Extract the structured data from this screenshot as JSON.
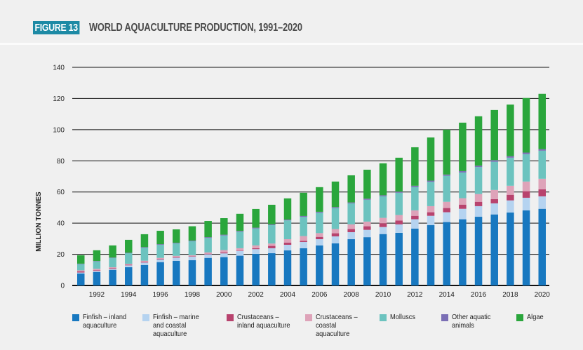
{
  "figure": {
    "badge": "FIGURE 13",
    "title": "WORLD AQUACULTURE PRODUCTION, 1991–2020"
  },
  "chart_data": {
    "type": "bar",
    "stacked": true,
    "title": "WORLD AQUACULTURE PRODUCTION, 1991–2020",
    "xlabel": "",
    "ylabel": "MILLION TONNES",
    "ylim": [
      0,
      140
    ],
    "yticks": [
      0,
      20,
      40,
      60,
      80,
      100,
      120,
      140
    ],
    "grid": true,
    "legend_position": "bottom",
    "categories": [
      1991,
      1992,
      1993,
      1994,
      1995,
      1996,
      1997,
      1998,
      1999,
      2000,
      2001,
      2002,
      2003,
      2004,
      2005,
      2006,
      2007,
      2008,
      2009,
      2010,
      2011,
      2012,
      2013,
      2014,
      2015,
      2016,
      2017,
      2018,
      2019,
      2020
    ],
    "xtick_labels": [
      "1992",
      "1994",
      "1996",
      "1998",
      "2000",
      "2002",
      "2004",
      "2006",
      "2008",
      "2010",
      "2012",
      "2014",
      "2016",
      "2018",
      "2020"
    ],
    "series": [
      {
        "name": "Finfish – inland aquaculture",
        "color": "#1878c0",
        "values": [
          7.7,
          8.6,
          10.0,
          11.7,
          13.1,
          15.0,
          15.8,
          16.2,
          17.7,
          18.2,
          19.1,
          20.3,
          20.7,
          22.5,
          23.9,
          25.7,
          27.0,
          29.7,
          31.0,
          33.0,
          33.8,
          36.5,
          38.7,
          40.7,
          42.5,
          44.1,
          45.6,
          46.8,
          48.2,
          49.2
        ]
      },
      {
        "name": "Finfish – marine and coastal aquaculture",
        "color": "#b5d3f0",
        "values": [
          0.6,
          0.7,
          0.6,
          1.2,
          1.6,
          1.7,
          2.0,
          2.3,
          2.3,
          2.4,
          3.0,
          3.0,
          3.2,
          3.6,
          4.0,
          4.0,
          4.5,
          4.5,
          4.7,
          4.5,
          5.4,
          6.0,
          6.0,
          6.3,
          6.7,
          6.8,
          7.1,
          7.8,
          8.1,
          8.0
        ]
      },
      {
        "name": "Crustaceans – inland aquaculture",
        "color": "#b8436e",
        "values": [
          0.7,
          0.5,
          0.5,
          0.4,
          0.4,
          0.4,
          0.4,
          0.3,
          0.4,
          0.6,
          0.3,
          0.6,
          1.5,
          1.4,
          0.8,
          1.5,
          2.0,
          2.0,
          2.3,
          2.4,
          2.5,
          2.2,
          2.3,
          2.7,
          2.7,
          2.8,
          2.7,
          3.6,
          4.2,
          4.5
        ]
      },
      {
        "name": "Crustaceans – coastal aquaculture",
        "color": "#dea3b9",
        "values": [
          0.7,
          0.9,
          0.6,
          0.6,
          0.8,
          0.6,
          0.8,
          0.6,
          0.8,
          1.5,
          1.5,
          1.8,
          1.5,
          2.2,
          3.0,
          2.4,
          2.7,
          3.0,
          3.0,
          3.5,
          3.5,
          3.5,
          3.9,
          4.0,
          4.1,
          5.0,
          5.9,
          5.8,
          6.2,
          6.8
        ]
      },
      {
        "name": "Molluscs",
        "color": "#6cc3bf",
        "values": [
          4.0,
          4.7,
          5.9,
          6.8,
          8.3,
          8.4,
          8.0,
          9.0,
          9.3,
          9.4,
          10.6,
          10.9,
          11.8,
          12.1,
          12.3,
          13.1,
          13.5,
          13.5,
          14.0,
          13.8,
          14.3,
          15.0,
          15.6,
          16.7,
          16.5,
          17.3,
          18.1,
          18.0,
          17.6,
          18.0
        ]
      },
      {
        "name": "Other aquatic animals",
        "color": "#7b6fb5",
        "values": [
          0.3,
          0.3,
          0.3,
          0.3,
          0.4,
          0.4,
          0.4,
          0.4,
          0.5,
          0.5,
          0.5,
          0.5,
          0.5,
          0.5,
          0.6,
          0.6,
          0.6,
          0.6,
          0.7,
          0.7,
          0.7,
          0.8,
          0.8,
          0.8,
          0.9,
          0.9,
          1.0,
          1.0,
          1.0,
          1.0
        ]
      },
      {
        "name": "Algae",
        "color": "#2aa63c",
        "values": [
          5.4,
          6.9,
          7.8,
          8.3,
          8.3,
          8.6,
          8.6,
          9.2,
          10.4,
          10.6,
          11.0,
          12.0,
          12.6,
          13.6,
          14.9,
          15.8,
          16.4,
          17.4,
          18.6,
          20.5,
          21.8,
          24.7,
          27.7,
          28.8,
          31.1,
          31.7,
          32.2,
          33.1,
          35.0,
          35.5
        ]
      }
    ]
  },
  "legend": [
    {
      "label": "Finfish – inland aquaculture",
      "color": "#1878c0"
    },
    {
      "label": "Finfish – marine and coastal aquaculture",
      "color": "#b5d3f0"
    },
    {
      "label": "Crustaceans – inland aquaculture",
      "color": "#b8436e"
    },
    {
      "label": "Crustaceans – coastal aquaculture",
      "color": "#dea3b9"
    },
    {
      "label": "Molluscs",
      "color": "#6cc3bf"
    },
    {
      "label": "Other aquatic animals",
      "color": "#7b6fb5"
    },
    {
      "label": "Algae",
      "color": "#2aa63c"
    }
  ]
}
